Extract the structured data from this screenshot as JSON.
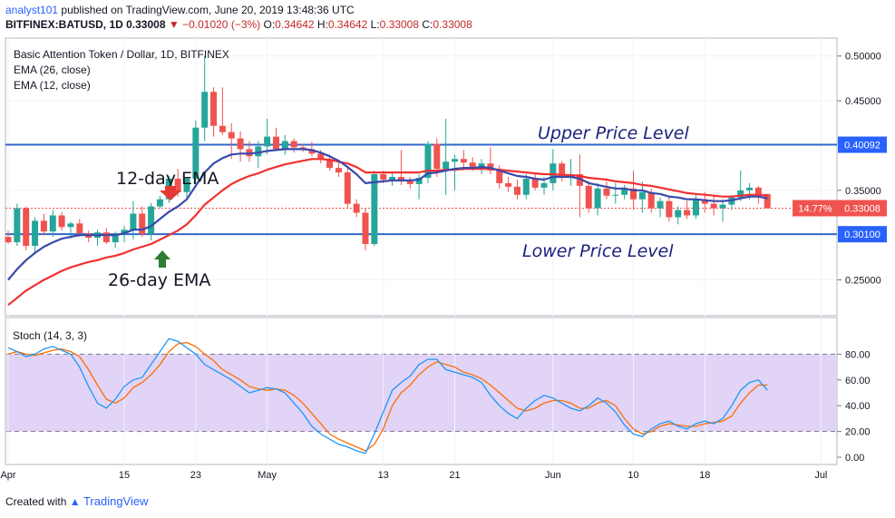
{
  "header": {
    "author": "analyst101",
    "published_text": "published on TradingView.com, June 20, 2019 13:48:36 UTC",
    "symbol": "BITFINEX:BATUSD, 1D",
    "last": "0.33008",
    "change": "−0.01020 (−3%)",
    "o_label": "O:",
    "o_val": "0.34642",
    "h_label": "H:",
    "h_val": "0.34642",
    "l_label": "L:",
    "l_val": "0.33008",
    "c_label": "C:",
    "c_val": "0.33008"
  },
  "legend": {
    "title": "Basic Attention Token / Dollar, 1D, BITFINEX",
    "ema26": "EMA (26, close)",
    "ema12": "EMA (12, close)"
  },
  "annotations": {
    "upper": "Upper Price Level",
    "lower": "Lower Price Level",
    "ema12": "12-day EMA",
    "ema26": "26-day EMA"
  },
  "stoch_label": "Stoch (14, 3, 3)",
  "footer": {
    "created": "Created with",
    "brand": "TradingView"
  },
  "chart_data": {
    "type": "candlestick",
    "ylim": [
      0.21,
      0.52
    ],
    "y_ticks": [
      "0.50000",
      "0.45000",
      "0.35000",
      "0.25000"
    ],
    "x_ticks": [
      {
        "label": "Apr",
        "i": 0
      },
      {
        "label": "15",
        "i": 13
      },
      {
        "label": "23",
        "i": 21
      },
      {
        "label": "May",
        "i": 29
      },
      {
        "label": "13",
        "i": 42
      },
      {
        "label": "21",
        "i": 50
      },
      {
        "label": "Jun",
        "i": 61
      },
      {
        "label": "10",
        "i": 70
      },
      {
        "label": "18",
        "i": 78
      },
      {
        "label": "Jul",
        "i": 91
      }
    ],
    "levels": {
      "upper": 0.40092,
      "lower": 0.301,
      "last": 0.33008,
      "last_pct": "14.77%"
    },
    "level_labels": {
      "upper": "0.40092",
      "lower": "0.30100",
      "last": "0.33008"
    },
    "candles": [
      [
        0.298,
        0.305,
        0.29,
        0.292
      ],
      [
        0.292,
        0.335,
        0.288,
        0.33
      ],
      [
        0.33,
        0.332,
        0.283,
        0.288
      ],
      [
        0.288,
        0.32,
        0.28,
        0.316
      ],
      [
        0.316,
        0.324,
        0.3,
        0.304
      ],
      [
        0.304,
        0.328,
        0.298,
        0.322
      ],
      [
        0.322,
        0.326,
        0.305,
        0.309
      ],
      [
        0.309,
        0.315,
        0.296,
        0.313
      ],
      [
        0.313,
        0.318,
        0.298,
        0.302
      ],
      [
        0.302,
        0.305,
        0.292,
        0.297
      ],
      [
        0.297,
        0.306,
        0.288,
        0.303
      ],
      [
        0.303,
        0.308,
        0.29,
        0.292
      ],
      [
        0.292,
        0.304,
        0.286,
        0.301
      ],
      [
        0.301,
        0.31,
        0.292,
        0.306
      ],
      [
        0.306,
        0.338,
        0.295,
        0.324
      ],
      [
        0.324,
        0.332,
        0.298,
        0.301
      ],
      [
        0.301,
        0.336,
        0.294,
        0.332
      ],
      [
        0.332,
        0.344,
        0.33,
        0.34
      ],
      [
        0.34,
        0.366,
        0.336,
        0.363
      ],
      [
        0.363,
        0.374,
        0.343,
        0.348
      ],
      [
        0.348,
        0.365,
        0.34,
        0.363
      ],
      [
        0.363,
        0.428,
        0.358,
        0.42
      ],
      [
        0.42,
        0.5,
        0.405,
        0.46
      ],
      [
        0.46,
        0.465,
        0.41,
        0.422
      ],
      [
        0.422,
        0.465,
        0.412,
        0.415
      ],
      [
        0.415,
        0.425,
        0.385,
        0.408
      ],
      [
        0.408,
        0.416,
        0.382,
        0.396
      ],
      [
        0.396,
        0.405,
        0.382,
        0.388
      ],
      [
        0.388,
        0.405,
        0.375,
        0.399
      ],
      [
        0.399,
        0.43,
        0.39,
        0.41
      ],
      [
        0.41,
        0.42,
        0.395,
        0.396
      ],
      [
        0.396,
        0.412,
        0.39,
        0.405
      ],
      [
        0.405,
        0.408,
        0.392,
        0.398
      ],
      [
        0.398,
        0.402,
        0.393,
        0.396
      ],
      [
        0.396,
        0.404,
        0.388,
        0.391
      ],
      [
        0.391,
        0.395,
        0.38,
        0.385
      ],
      [
        0.385,
        0.39,
        0.372,
        0.375
      ],
      [
        0.375,
        0.382,
        0.365,
        0.37
      ],
      [
        0.37,
        0.375,
        0.33,
        0.335
      ],
      [
        0.335,
        0.34,
        0.32,
        0.325
      ],
      [
        0.325,
        0.33,
        0.283,
        0.29
      ],
      [
        0.29,
        0.372,
        0.288,
        0.368
      ],
      [
        0.368,
        0.372,
        0.358,
        0.362
      ],
      [
        0.362,
        0.37,
        0.355,
        0.365
      ],
      [
        0.365,
        0.395,
        0.356,
        0.36
      ],
      [
        0.36,
        0.365,
        0.352,
        0.357
      ],
      [
        0.357,
        0.368,
        0.34,
        0.364
      ],
      [
        0.364,
        0.405,
        0.358,
        0.402
      ],
      [
        0.402,
        0.408,
        0.365,
        0.374
      ],
      [
        0.374,
        0.43,
        0.345,
        0.382
      ],
      [
        0.382,
        0.39,
        0.35,
        0.385
      ],
      [
        0.385,
        0.395,
        0.372,
        0.381
      ],
      [
        0.381,
        0.387,
        0.372,
        0.375
      ],
      [
        0.375,
        0.385,
        0.368,
        0.38
      ],
      [
        0.38,
        0.398,
        0.368,
        0.372
      ],
      [
        0.372,
        0.378,
        0.352,
        0.358
      ],
      [
        0.358,
        0.365,
        0.348,
        0.354
      ],
      [
        0.354,
        0.362,
        0.34,
        0.345
      ],
      [
        0.345,
        0.368,
        0.34,
        0.363
      ],
      [
        0.363,
        0.368,
        0.35,
        0.353
      ],
      [
        0.353,
        0.365,
        0.345,
        0.358
      ],
      [
        0.358,
        0.396,
        0.35,
        0.38
      ],
      [
        0.38,
        0.383,
        0.36,
        0.364
      ],
      [
        0.364,
        0.385,
        0.355,
        0.368
      ],
      [
        0.368,
        0.39,
        0.32,
        0.355
      ],
      [
        0.355,
        0.36,
        0.325,
        0.33
      ],
      [
        0.33,
        0.358,
        0.322,
        0.352
      ],
      [
        0.352,
        0.36,
        0.34,
        0.344
      ],
      [
        0.344,
        0.358,
        0.335,
        0.345
      ],
      [
        0.345,
        0.356,
        0.34,
        0.352
      ],
      [
        0.352,
        0.372,
        0.328,
        0.34
      ],
      [
        0.34,
        0.36,
        0.325,
        0.348
      ],
      [
        0.348,
        0.352,
        0.325,
        0.33
      ],
      [
        0.33,
        0.342,
        0.32,
        0.338
      ],
      [
        0.338,
        0.344,
        0.315,
        0.32
      ],
      [
        0.32,
        0.332,
        0.312,
        0.328
      ],
      [
        0.328,
        0.338,
        0.318,
        0.322
      ],
      [
        0.322,
        0.345,
        0.318,
        0.34
      ],
      [
        0.34,
        0.348,
        0.325,
        0.335
      ],
      [
        0.335,
        0.345,
        0.322,
        0.33
      ],
      [
        0.33,
        0.34,
        0.315,
        0.334
      ],
      [
        0.334,
        0.345,
        0.328,
        0.342
      ],
      [
        0.342,
        0.372,
        0.338,
        0.35
      ],
      [
        0.35,
        0.358,
        0.34,
        0.353
      ],
      [
        0.353,
        0.355,
        0.335,
        0.344
      ],
      [
        0.346,
        0.346,
        0.33,
        0.33
      ]
    ],
    "series": [
      {
        "name": "EMA (26, close)",
        "color": "#f23030",
        "values": [
          0.222,
          0.23,
          0.238,
          0.244,
          0.25,
          0.255,
          0.26,
          0.264,
          0.267,
          0.27,
          0.272,
          0.275,
          0.277,
          0.28,
          0.284,
          0.287,
          0.29,
          0.295,
          0.3,
          0.305,
          0.312,
          0.322,
          0.334,
          0.342,
          0.35,
          0.357,
          0.362,
          0.366,
          0.369,
          0.373,
          0.376,
          0.379,
          0.381,
          0.383,
          0.385,
          0.385,
          0.384,
          0.382,
          0.38,
          0.376,
          0.37,
          0.37,
          0.37,
          0.37,
          0.37,
          0.37,
          0.37,
          0.372,
          0.372,
          0.373,
          0.373,
          0.374,
          0.374,
          0.374,
          0.374,
          0.373,
          0.372,
          0.371,
          0.37,
          0.369,
          0.368,
          0.368,
          0.367,
          0.367,
          0.366,
          0.364,
          0.363,
          0.362,
          0.36,
          0.359,
          0.358,
          0.356,
          0.355,
          0.353,
          0.351,
          0.349,
          0.347,
          0.346,
          0.345,
          0.344,
          0.343,
          0.343,
          0.344,
          0.345,
          0.345,
          0.344
        ]
      },
      {
        "name": "EMA (12, close)",
        "color": "#3949ab",
        "values": [
          0.25,
          0.262,
          0.272,
          0.28,
          0.287,
          0.292,
          0.296,
          0.298,
          0.3,
          0.3,
          0.3,
          0.3,
          0.3,
          0.302,
          0.306,
          0.306,
          0.31,
          0.318,
          0.326,
          0.332,
          0.34,
          0.355,
          0.37,
          0.38,
          0.386,
          0.39,
          0.391,
          0.391,
          0.392,
          0.394,
          0.395,
          0.396,
          0.396,
          0.396,
          0.395,
          0.392,
          0.388,
          0.383,
          0.376,
          0.368,
          0.358,
          0.359,
          0.36,
          0.361,
          0.361,
          0.361,
          0.362,
          0.369,
          0.37,
          0.372,
          0.374,
          0.375,
          0.375,
          0.376,
          0.375,
          0.372,
          0.369,
          0.366,
          0.365,
          0.363,
          0.362,
          0.365,
          0.365,
          0.365,
          0.363,
          0.358,
          0.356,
          0.354,
          0.352,
          0.352,
          0.35,
          0.35,
          0.347,
          0.346,
          0.343,
          0.342,
          0.34,
          0.34,
          0.339,
          0.338,
          0.338,
          0.339,
          0.341,
          0.343,
          0.343,
          0.341
        ]
      }
    ],
    "stoch": {
      "ylim": [
        0,
        100
      ],
      "y_ticks": [
        "80.00",
        "60.00",
        "40.00",
        "20.00",
        "0.00"
      ],
      "bands": [
        80,
        20
      ],
      "k": [
        85,
        82,
        78,
        80,
        84,
        86,
        83,
        80,
        70,
        55,
        42,
        38,
        45,
        55,
        60,
        62,
        72,
        82,
        92,
        90,
        85,
        80,
        72,
        68,
        64,
        60,
        55,
        50,
        52,
        54,
        53,
        50,
        42,
        34,
        24,
        18,
        14,
        10,
        8,
        5,
        3,
        18,
        35,
        52,
        58,
        63,
        72,
        76,
        76,
        68,
        66,
        64,
        62,
        58,
        48,
        40,
        34,
        30,
        38,
        44,
        48,
        46,
        42,
        38,
        36,
        40,
        46,
        42,
        35,
        25,
        18,
        16,
        22,
        26,
        28,
        24,
        22,
        26,
        28,
        26,
        30,
        40,
        52,
        58,
        60,
        52
      ],
      "d": [
        80,
        82,
        80,
        79,
        81,
        83,
        84,
        82,
        78,
        68,
        56,
        45,
        42,
        46,
        54,
        58,
        64,
        72,
        82,
        88,
        89,
        86,
        80,
        75,
        68,
        64,
        60,
        55,
        53,
        52,
        53,
        52,
        48,
        42,
        34,
        26,
        18,
        14,
        11,
        8,
        5,
        10,
        22,
        40,
        50,
        56,
        64,
        70,
        74,
        72,
        70,
        66,
        64,
        61,
        56,
        50,
        44,
        38,
        36,
        38,
        42,
        44,
        44,
        42,
        38,
        38,
        42,
        44,
        40,
        30,
        22,
        18,
        20,
        24,
        26,
        25,
        24,
        24,
        26,
        27,
        28,
        32,
        42,
        50,
        56,
        56
      ]
    }
  }
}
